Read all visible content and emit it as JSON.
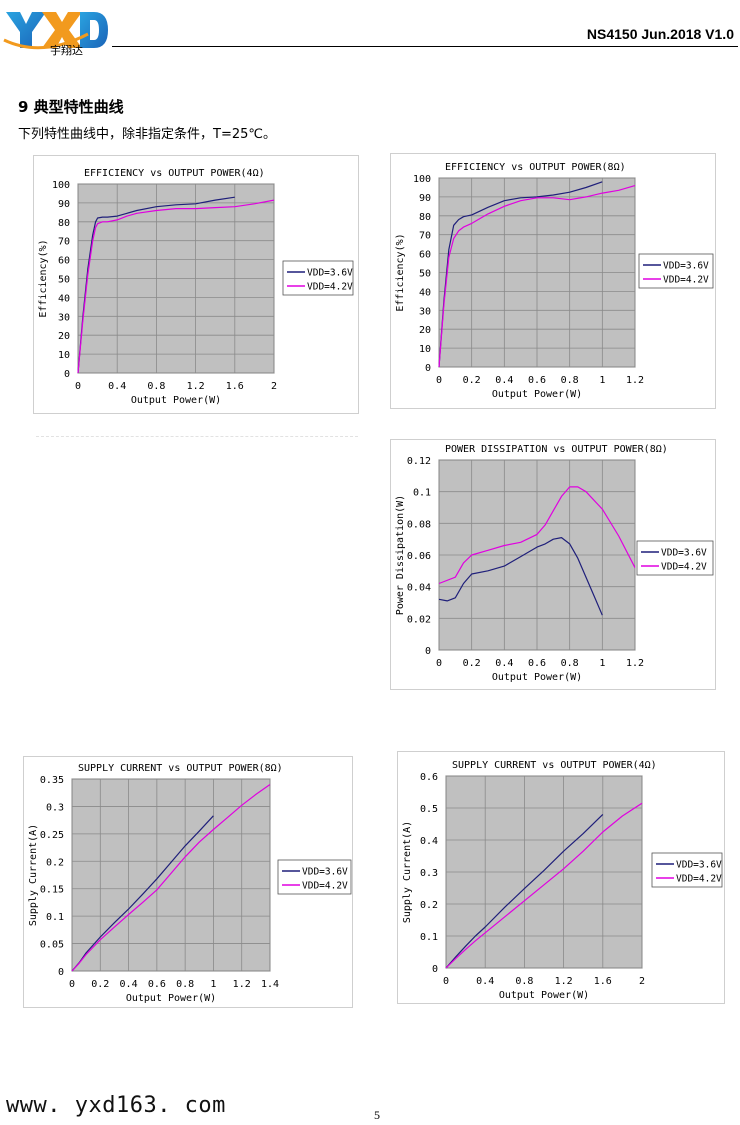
{
  "header": {
    "logo_text": "YXD",
    "logo_subtext": "宇翔达",
    "doc_id": "NS4150 Jun.2018 V1.0"
  },
  "section": {
    "title": "9  典型特性曲线",
    "intro": "下列特性曲线中，除非指定条件，T=25℃。"
  },
  "footer": {
    "url": "www. yxd163. com",
    "page_number": "5"
  },
  "colors": {
    "vdd36": "#1f1f7a",
    "vdd42": "#e000e0",
    "plot_bg": "#c0c0c0",
    "grid": "#8a8a8a"
  },
  "chart_data": [
    {
      "id": "eff4",
      "type": "line",
      "title": "EFFICIENCY vs OUTPUT POWER(4Ω)",
      "xlabel": "Output Power(W)",
      "ylabel": "Efficiency(%)",
      "xlim": [
        0,
        2
      ],
      "ylim": [
        0,
        100
      ],
      "xticks": [
        "0",
        "0.4",
        "0.8",
        "1.2",
        "1.6",
        "2"
      ],
      "yticks": [
        "0",
        "10",
        "20",
        "30",
        "40",
        "50",
        "60",
        "70",
        "80",
        "90",
        "100"
      ],
      "grid": true,
      "legend": "right",
      "series": [
        {
          "name": "VDD=3.6V",
          "color": "#1f1f7a",
          "x": [
            0,
            0.05,
            0.1,
            0.15,
            0.18,
            0.2,
            0.25,
            0.3,
            0.4,
            0.5,
            0.6,
            0.8,
            1.0,
            1.2,
            1.4,
            1.6
          ],
          "y": [
            0,
            30,
            55,
            73,
            80,
            82,
            82.5,
            82.5,
            83,
            84.5,
            86,
            88,
            89,
            89.5,
            91.5,
            93
          ]
        },
        {
          "name": "VDD=4.2V",
          "color": "#e000e0",
          "x": [
            0,
            0.05,
            0.1,
            0.15,
            0.18,
            0.2,
            0.25,
            0.3,
            0.4,
            0.5,
            0.6,
            0.8,
            1.0,
            1.2,
            1.4,
            1.6,
            1.8,
            2.0
          ],
          "y": [
            0,
            28,
            52,
            70,
            77,
            79,
            80,
            80,
            81,
            83,
            84.5,
            86,
            87,
            87,
            87.5,
            88,
            89.5,
            91.5
          ]
        }
      ]
    },
    {
      "id": "eff8",
      "type": "line",
      "title": "EFFICIENCY vs OUTPUT POWER(8Ω)",
      "xlabel": "Output Power(W)",
      "ylabel": "Efficiency(%)",
      "xlim": [
        0,
        1.2
      ],
      "ylim": [
        0,
        100
      ],
      "xticks": [
        "0",
        "0.2",
        "0.4",
        "0.6",
        "0.8",
        "1",
        "1.2"
      ],
      "yticks": [
        "0",
        "10",
        "20",
        "30",
        "40",
        "50",
        "60",
        "70",
        "80",
        "90",
        "100"
      ],
      "grid": true,
      "legend": "right",
      "series": [
        {
          "name": "VDD=3.6V",
          "color": "#1f1f7a",
          "x": [
            0,
            0.03,
            0.06,
            0.09,
            0.12,
            0.15,
            0.2,
            0.3,
            0.4,
            0.5,
            0.6,
            0.7,
            0.8,
            0.9,
            1.0
          ],
          "y": [
            0,
            35,
            62,
            75,
            78,
            79.5,
            80.5,
            84.5,
            88,
            89.5,
            90,
            91,
            92.5,
            95,
            98
          ]
        },
        {
          "name": "VDD=4.2V",
          "color": "#e000e0",
          "x": [
            0,
            0.03,
            0.06,
            0.09,
            0.12,
            0.15,
            0.2,
            0.3,
            0.4,
            0.5,
            0.6,
            0.7,
            0.8,
            0.9,
            1.0,
            1.1,
            1.2
          ],
          "y": [
            0,
            33,
            58,
            68,
            72,
            74,
            76,
            81,
            85,
            88,
            89.5,
            89.5,
            88.5,
            90,
            92,
            93.5,
            96
          ]
        }
      ]
    },
    {
      "id": "pdiss8",
      "type": "line",
      "title": "POWER DISSIPATION vs OUTPUT POWER(8Ω)",
      "xlabel": "Output Power(W)",
      "ylabel": "Power Dissipation(W)",
      "xlim": [
        0,
        1.2
      ],
      "ylim": [
        0,
        0.12
      ],
      "xticks": [
        "0",
        "0.2",
        "0.4",
        "0.6",
        "0.8",
        "1",
        "1.2"
      ],
      "yticks": [
        "0",
        "0.02",
        "0.04",
        "0.06",
        "0.08",
        "0.1",
        "0.12"
      ],
      "grid": true,
      "legend": "right",
      "series": [
        {
          "name": "VDD=3.6V",
          "color": "#1f1f7a",
          "x": [
            0,
            0.05,
            0.1,
            0.15,
            0.2,
            0.3,
            0.4,
            0.5,
            0.6,
            0.65,
            0.7,
            0.75,
            0.8,
            0.85,
            0.9,
            0.95,
            1.0
          ],
          "y": [
            0.032,
            0.031,
            0.033,
            0.042,
            0.048,
            0.05,
            0.053,
            0.059,
            0.065,
            0.067,
            0.07,
            0.071,
            0.067,
            0.058,
            0.046,
            0.034,
            0.022
          ]
        },
        {
          "name": "VDD=4.2V",
          "color": "#e000e0",
          "x": [
            0,
            0.1,
            0.15,
            0.2,
            0.3,
            0.4,
            0.5,
            0.6,
            0.65,
            0.7,
            0.75,
            0.8,
            0.85,
            0.9,
            1.0,
            1.1,
            1.2
          ],
          "y": [
            0.042,
            0.046,
            0.055,
            0.06,
            0.063,
            0.066,
            0.068,
            0.073,
            0.079,
            0.088,
            0.097,
            0.103,
            0.103,
            0.1,
            0.089,
            0.072,
            0.052
          ]
        }
      ]
    },
    {
      "id": "isup8",
      "type": "line",
      "title": "SUPPLY CURRENT vs OUTPUT POWER(8Ω)",
      "xlabel": "Output Power(W)",
      "ylabel": "Supply Current(A)",
      "xlim": [
        0,
        1.4
      ],
      "ylim": [
        0,
        0.35
      ],
      "xticks": [
        "0",
        "0.2",
        "0.4",
        "0.6",
        "0.8",
        "1",
        "1.2",
        "1.4"
      ],
      "yticks": [
        "0",
        "0.05",
        "0.1",
        "0.15",
        "0.2",
        "0.25",
        "0.3",
        "0.35"
      ],
      "grid": true,
      "legend": "right",
      "series": [
        {
          "name": "VDD=3.6V",
          "color": "#1f1f7a",
          "x": [
            0,
            0.05,
            0.1,
            0.2,
            0.3,
            0.4,
            0.5,
            0.6,
            0.7,
            0.8,
            0.9,
            1.0
          ],
          "y": [
            0,
            0.015,
            0.033,
            0.062,
            0.088,
            0.113,
            0.14,
            0.168,
            0.198,
            0.228,
            0.255,
            0.283
          ]
        },
        {
          "name": "VDD=4.2V",
          "color": "#e000e0",
          "x": [
            0,
            0.05,
            0.1,
            0.2,
            0.3,
            0.4,
            0.5,
            0.6,
            0.7,
            0.8,
            0.9,
            1.0,
            1.1,
            1.2,
            1.3,
            1.4
          ],
          "y": [
            0,
            0.014,
            0.03,
            0.057,
            0.08,
            0.103,
            0.125,
            0.148,
            0.178,
            0.208,
            0.235,
            0.258,
            0.28,
            0.302,
            0.322,
            0.34
          ]
        }
      ]
    },
    {
      "id": "isup4",
      "type": "line",
      "title": "SUPPLY CURRENT vs OUTPUT POWER(4Ω)",
      "xlabel": "Output Power(W)",
      "ylabel": "Supply Current(A)",
      "xlim": [
        0,
        2
      ],
      "ylim": [
        0,
        0.6
      ],
      "xticks": [
        "0",
        "0.4",
        "0.8",
        "1.2",
        "1.6",
        "2"
      ],
      "yticks": [
        "0",
        "0.1",
        "0.2",
        "0.3",
        "0.4",
        "0.5",
        "0.6"
      ],
      "grid": true,
      "legend": "right",
      "series": [
        {
          "name": "VDD=3.6V",
          "color": "#1f1f7a",
          "x": [
            0,
            0.1,
            0.2,
            0.3,
            0.4,
            0.6,
            0.8,
            1.0,
            1.2,
            1.4,
            1.6
          ],
          "y": [
            0,
            0.035,
            0.068,
            0.1,
            0.128,
            0.19,
            0.248,
            0.305,
            0.365,
            0.42,
            0.48
          ]
        },
        {
          "name": "VDD=4.2V",
          "color": "#e000e0",
          "x": [
            0,
            0.1,
            0.2,
            0.3,
            0.4,
            0.6,
            0.8,
            1.0,
            1.2,
            1.4,
            1.6,
            1.8,
            2.0
          ],
          "y": [
            0,
            0.03,
            0.058,
            0.085,
            0.11,
            0.16,
            0.21,
            0.26,
            0.31,
            0.365,
            0.425,
            0.475,
            0.515
          ]
        }
      ]
    }
  ]
}
